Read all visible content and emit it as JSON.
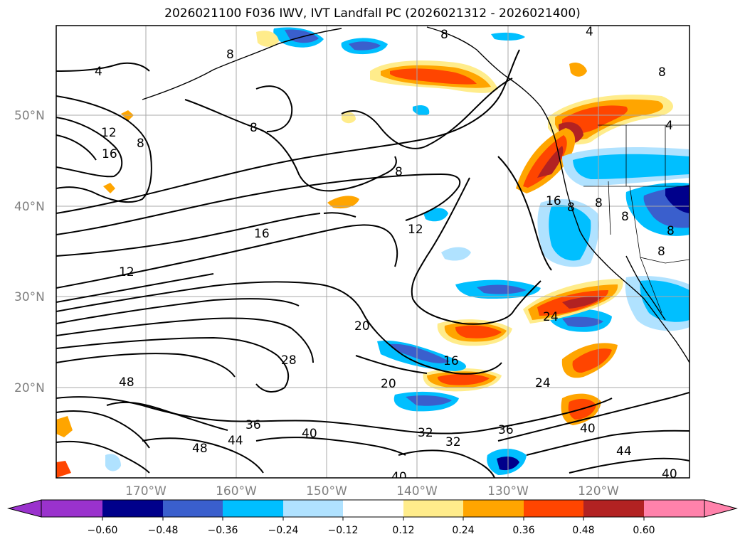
{
  "title": "2026021100 F036 IWV, IVT Landfall PC (2026021312 - 2026021400)",
  "map": {
    "lat_labels": [
      "50°N",
      "40°N",
      "30°N",
      "20°N"
    ],
    "lon_labels": [
      "170°W",
      "160°W",
      "150°W",
      "140°W",
      "130°W",
      "120°W"
    ],
    "gridlines": true
  },
  "colorbar": {
    "ticks": [
      "−0.60",
      "−0.48",
      "−0.36",
      "−0.24",
      "−0.12",
      "0.12",
      "0.24",
      "0.36",
      "0.48",
      "0.60"
    ],
    "colors": [
      "#9a32cd",
      "#00008b",
      "#3a5fcd",
      "#00bfff",
      "#b0e2ff",
      "#ffffff",
      "#ffec8b",
      "#ffa500",
      "#ff4500",
      "#b22222",
      "#ff82ab"
    ],
    "extend": "both"
  },
  "colors": {
    "pos_light": "#ffec8b",
    "pos_mid": "#ffa500",
    "pos_strong": "#ff4500",
    "pos_max": "#b22222",
    "neg_light": "#b0e2ff",
    "neg_mid": "#00bfff",
    "neg_strong": "#3a5fcd",
    "neg_max": "#00008b"
  },
  "contour_labels": [
    {
      "id": "c4a",
      "text": "4"
    },
    {
      "id": "c4b",
      "text": "4"
    },
    {
      "id": "c4c",
      "text": "4"
    },
    {
      "id": "c8a",
      "text": "8"
    },
    {
      "id": "c8b",
      "text": "8"
    },
    {
      "id": "c8c",
      "text": "8"
    },
    {
      "id": "c8d",
      "text": "8"
    },
    {
      "id": "c8e",
      "text": "8"
    },
    {
      "id": "c8f",
      "text": "8"
    },
    {
      "id": "c8g",
      "text": "8"
    },
    {
      "id": "c8h",
      "text": "8"
    },
    {
      "id": "c8i",
      "text": "8"
    },
    {
      "id": "c8j",
      "text": "8"
    },
    {
      "id": "c8k",
      "text": "8"
    },
    {
      "id": "c12a",
      "text": "12"
    },
    {
      "id": "c12b",
      "text": "12"
    },
    {
      "id": "c12c",
      "text": "12"
    },
    {
      "id": "c16a",
      "text": "16"
    },
    {
      "id": "c16b",
      "text": "16"
    },
    {
      "id": "c16c",
      "text": "16"
    },
    {
      "id": "c16d",
      "text": "16"
    },
    {
      "id": "c20a",
      "text": "20"
    },
    {
      "id": "c20b",
      "text": "20"
    },
    {
      "id": "c24a",
      "text": "24"
    },
    {
      "id": "c24b",
      "text": "24"
    },
    {
      "id": "c28a",
      "text": "28"
    },
    {
      "id": "c32a",
      "text": "32"
    },
    {
      "id": "c32b",
      "text": "32"
    },
    {
      "id": "c36a",
      "text": "36"
    },
    {
      "id": "c36b",
      "text": "36"
    },
    {
      "id": "c40a",
      "text": "40"
    },
    {
      "id": "c40b",
      "text": "40"
    },
    {
      "id": "c40c",
      "text": "40"
    },
    {
      "id": "c40d",
      "text": "40"
    },
    {
      "id": "c44a",
      "text": "44"
    },
    {
      "id": "c44b",
      "text": "44"
    },
    {
      "id": "c48a",
      "text": "48"
    },
    {
      "id": "c48b",
      "text": "48"
    }
  ]
}
